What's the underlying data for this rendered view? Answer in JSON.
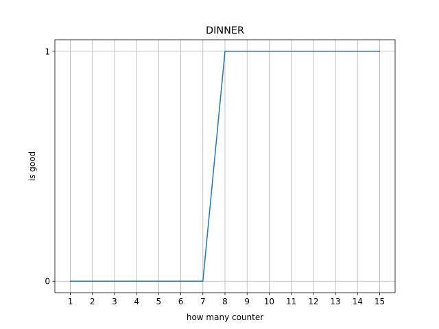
{
  "chart_data": {
    "type": "line",
    "title": "DINNER",
    "xlabel": "how many counter",
    "ylabel": "is good",
    "x": [
      1,
      2,
      3,
      4,
      5,
      6,
      7,
      8,
      9,
      10,
      11,
      12,
      13,
      14,
      15
    ],
    "series": [
      {
        "values": [
          0,
          0,
          0,
          0,
          0,
          0,
          0,
          1,
          1,
          1,
          1,
          1,
          1,
          1,
          1
        ],
        "color": "#1f77b4"
      }
    ],
    "xticks": [
      "1",
      "2",
      "3",
      "4",
      "5",
      "6",
      "7",
      "8",
      "9",
      "10",
      "11",
      "12",
      "13",
      "14",
      "15"
    ],
    "yticks": [
      {
        "value": 0,
        "label": "0"
      },
      {
        "value": 1,
        "label": "1"
      }
    ],
    "xlim": [
      0.3,
      15.7
    ],
    "ylim": [
      -0.05,
      1.05
    ],
    "grid": "x and y",
    "legend": "none"
  }
}
